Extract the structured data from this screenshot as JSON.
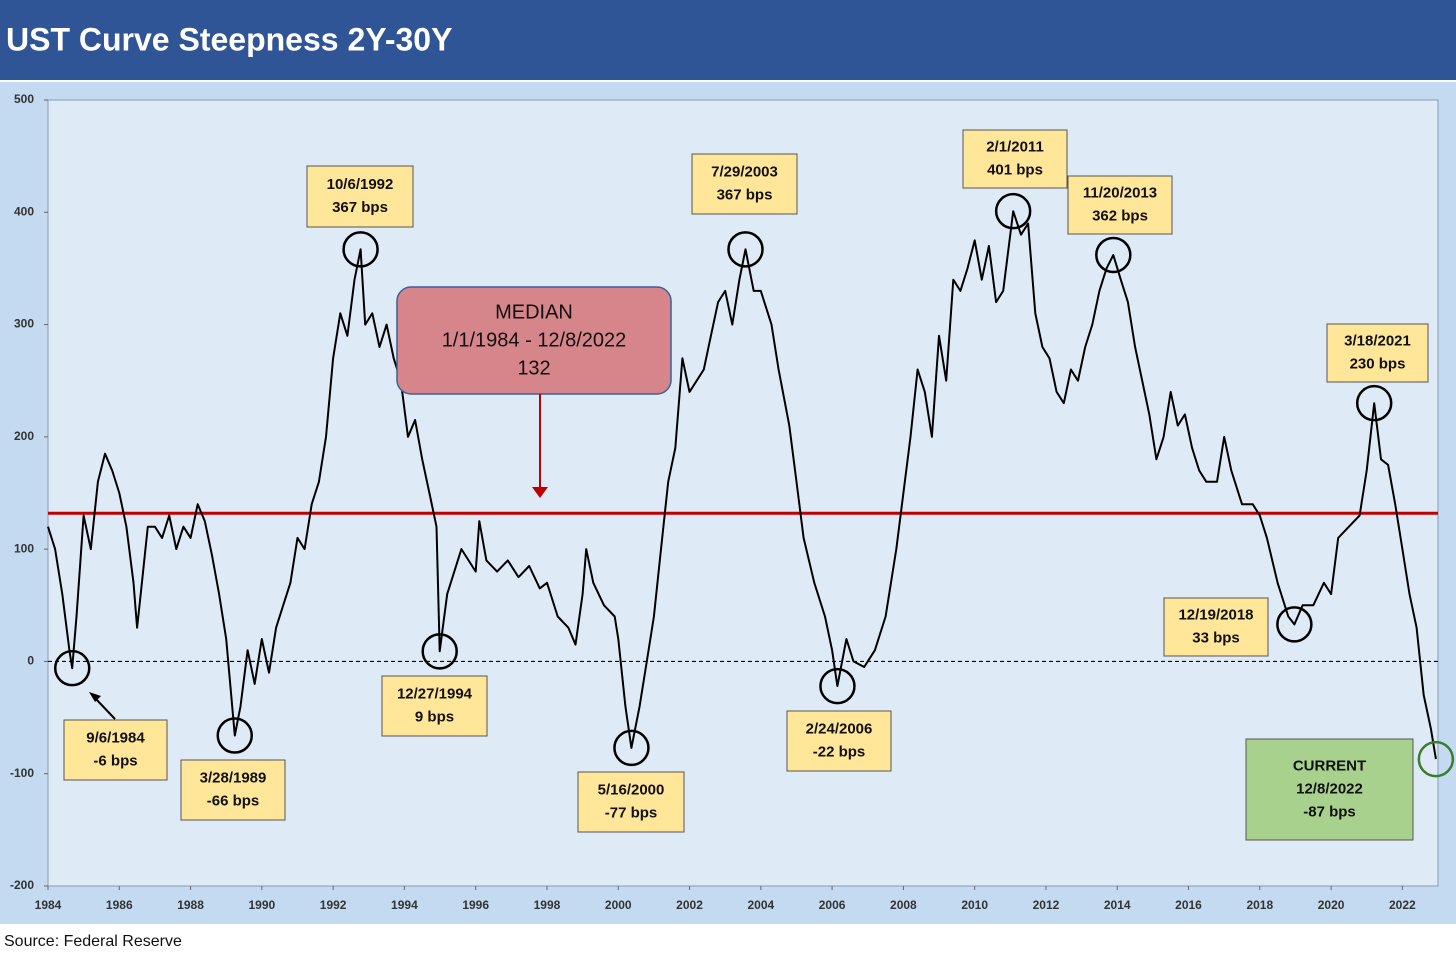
{
  "chart_data": {
    "type": "line",
    "title": "UST Curve Steepness 2Y-30Y",
    "source": "Source: Federal Reserve",
    "color": "#000000",
    "xlim": [
      1984,
      2023
    ],
    "ylim": [
      -200,
      500
    ],
    "xticks": [
      1984,
      1986,
      1988,
      1990,
      1992,
      1994,
      1996,
      1998,
      2000,
      2002,
      2004,
      2006,
      2008,
      2010,
      2012,
      2014,
      2016,
      2018,
      2020,
      2022
    ],
    "yticks": [
      -200,
      -100,
      0,
      100,
      200,
      300,
      400,
      500
    ],
    "zero_line": true,
    "x": [
      1984.0,
      1984.2,
      1984.4,
      1984.6,
      1984.68,
      1984.8,
      1985.0,
      1985.2,
      1985.4,
      1985.6,
      1985.8,
      1986.0,
      1986.2,
      1986.4,
      1986.5,
      1986.6,
      1986.8,
      1987.0,
      1987.2,
      1987.4,
      1987.6,
      1987.8,
      1988.0,
      1988.2,
      1988.4,
      1988.6,
      1988.8,
      1989.0,
      1989.24,
      1989.4,
      1989.6,
      1989.8,
      1990.0,
      1990.2,
      1990.4,
      1990.6,
      1990.8,
      1991.0,
      1991.2,
      1991.4,
      1991.6,
      1991.8,
      1992.0,
      1992.2,
      1992.4,
      1992.6,
      1992.77,
      1992.9,
      1993.1,
      1993.3,
      1993.5,
      1993.7,
      1993.9,
      1994.1,
      1994.3,
      1994.5,
      1994.7,
      1994.9,
      1994.99,
      1995.2,
      1995.4,
      1995.6,
      1995.8,
      1996.0,
      1996.1,
      1996.3,
      1996.6,
      1996.9,
      1997.2,
      1997.5,
      1997.8,
      1998.0,
      1998.3,
      1998.6,
      1998.8,
      1999.0,
      1999.1,
      1999.3,
      1999.6,
      1999.9,
      2000.0,
      2000.2,
      2000.37,
      2000.6,
      2000.8,
      2001.0,
      2001.2,
      2001.4,
      2001.6,
      2001.8,
      2002.0,
      2002.2,
      2002.4,
      2002.6,
      2002.8,
      2003.0,
      2003.2,
      2003.4,
      2003.57,
      2003.8,
      2004.0,
      2004.3,
      2004.5,
      2004.8,
      2005.0,
      2005.2,
      2005.5,
      2005.8,
      2006.0,
      2006.15,
      2006.4,
      2006.6,
      2006.9,
      2007.2,
      2007.5,
      2007.8,
      2008.0,
      2008.2,
      2008.4,
      2008.6,
      2008.8,
      2009.0,
      2009.2,
      2009.4,
      2009.6,
      2009.8,
      2010.0,
      2010.2,
      2010.4,
      2010.6,
      2010.8,
      2011.08,
      2011.3,
      2011.5,
      2011.7,
      2011.9,
      2012.1,
      2012.3,
      2012.5,
      2012.7,
      2012.9,
      2013.1,
      2013.3,
      2013.5,
      2013.7,
      2013.89,
      2014.1,
      2014.3,
      2014.5,
      2014.7,
      2014.9,
      2015.1,
      2015.3,
      2015.5,
      2015.7,
      2015.9,
      2016.1,
      2016.3,
      2016.5,
      2016.8,
      2017.0,
      2017.2,
      2017.5,
      2017.8,
      2018.0,
      2018.2,
      2018.5,
      2018.8,
      2018.97,
      2019.2,
      2019.5,
      2019.8,
      2020.0,
      2020.2,
      2020.5,
      2020.8,
      2021.0,
      2021.21,
      2021.4,
      2021.6,
      2021.8,
      2022.0,
      2022.2,
      2022.4,
      2022.6,
      2022.8,
      2022.94
    ],
    "values": [
      120,
      100,
      60,
      10,
      -6,
      40,
      130,
      100,
      160,
      185,
      170,
      150,
      120,
      70,
      30,
      60,
      120,
      120,
      110,
      130,
      100,
      120,
      110,
      140,
      125,
      95,
      60,
      20,
      -66,
      -40,
      10,
      -20,
      20,
      -10,
      30,
      50,
      70,
      110,
      100,
      140,
      160,
      200,
      270,
      310,
      290,
      340,
      367,
      300,
      310,
      280,
      300,
      270,
      250,
      200,
      215,
      180,
      150,
      120,
      9,
      60,
      80,
      100,
      90,
      80,
      125,
      90,
      80,
      90,
      75,
      85,
      65,
      70,
      40,
      30,
      15,
      60,
      100,
      70,
      50,
      40,
      20,
      -40,
      -77,
      -40,
      0,
      40,
      100,
      160,
      190,
      270,
      240,
      250,
      260,
      290,
      320,
      330,
      300,
      340,
      367,
      330,
      330,
      300,
      260,
      210,
      160,
      110,
      70,
      40,
      10,
      -22,
      20,
      0,
      -5,
      10,
      40,
      100,
      150,
      200,
      260,
      240,
      200,
      290,
      250,
      340,
      330,
      350,
      375,
      340,
      370,
      320,
      330,
      401,
      380,
      390,
      310,
      280,
      270,
      240,
      230,
      260,
      250,
      280,
      300,
      330,
      350,
      362,
      340,
      320,
      280,
      250,
      220,
      180,
      200,
      240,
      210,
      220,
      190,
      170,
      160,
      160,
      200,
      170,
      140,
      140,
      130,
      110,
      70,
      40,
      33,
      50,
      50,
      70,
      60,
      110,
      120,
      130,
      170,
      230,
      180,
      175,
      140,
      100,
      60,
      30,
      -30,
      -60,
      -87
    ],
    "median": {
      "value": 132,
      "lines": [
        "MEDIAN",
        "1/1/1984 - 12/8/2022",
        "132"
      ],
      "color": "#c00000"
    },
    "annotations": [
      {
        "lines": [
          "9/6/1984",
          "-6 bps"
        ],
        "x": 1984.68,
        "y": -6
      },
      {
        "lines": [
          "3/28/1989",
          "-66 bps"
        ],
        "x": 1989.24,
        "y": -66
      },
      {
        "lines": [
          "10/6/1992",
          "367 bps"
        ],
        "x": 1992.77,
        "y": 367
      },
      {
        "lines": [
          "12/27/1994",
          "9 bps"
        ],
        "x": 1994.99,
        "y": 9
      },
      {
        "lines": [
          "5/16/2000",
          "-77 bps"
        ],
        "x": 2000.37,
        "y": -77
      },
      {
        "lines": [
          "7/29/2003",
          "367 bps"
        ],
        "x": 2003.57,
        "y": 367
      },
      {
        "lines": [
          "2/24/2006",
          "-22 bps"
        ],
        "x": 2006.15,
        "y": -22
      },
      {
        "lines": [
          "2/1/2011",
          "401 bps"
        ],
        "x": 2011.08,
        "y": 401
      },
      {
        "lines": [
          "11/20/2013",
          "362 bps"
        ],
        "x": 2013.89,
        "y": 362
      },
      {
        "lines": [
          "12/19/2018",
          "33 bps"
        ],
        "x": 2018.97,
        "y": 33
      },
      {
        "lines": [
          "3/18/2021",
          "230 bps"
        ],
        "x": 2021.21,
        "y": 230
      },
      {
        "lines": [
          "CURRENT",
          "12/8/2022",
          "-87 bps"
        ],
        "x": 2022.94,
        "y": -87
      }
    ]
  }
}
